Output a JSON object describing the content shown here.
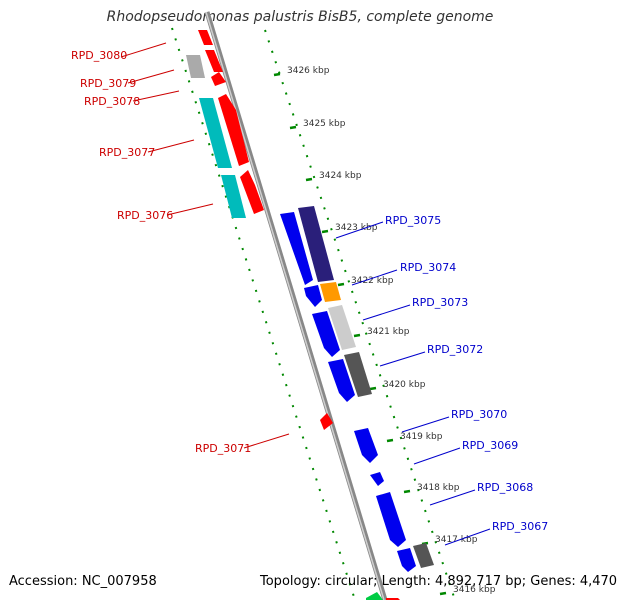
{
  "header": {
    "title": "Rhodopseudomonas palustris BisB5, complete genome"
  },
  "footer": {
    "accession": "Accession: NC_007958",
    "summary": "Topology: circular; Length: 4,892,717 bp; Genes: 4,470"
  },
  "colors": {
    "forward_label": "#cc0000",
    "reverse_label": "#0000cc",
    "backbone": "#999999",
    "ticks": "#008800"
  },
  "kbp_labels": [
    "3426 kbp",
    "3425 kbp",
    "3424 kbp",
    "3423 kbp",
    "3422 kbp",
    "3421 kbp",
    "3420 kbp",
    "3419 kbp",
    "3418 kbp",
    "3417 kbp",
    "3416 kbp"
  ],
  "genes_left": [
    {
      "label": "RPD_3080"
    },
    {
      "label": "RPD_3079"
    },
    {
      "label": "RPD_3078"
    },
    {
      "label": "RPD_3077"
    },
    {
      "label": "RPD_3076"
    },
    {
      "label": "RPD_3071"
    }
  ],
  "genes_right": [
    {
      "label": "RPD_3075"
    },
    {
      "label": "RPD_3074"
    },
    {
      "label": "RPD_3073"
    },
    {
      "label": "RPD_3072"
    },
    {
      "label": "RPD_3070"
    },
    {
      "label": "RPD_3069"
    },
    {
      "label": "RPD_3068"
    },
    {
      "label": "RPD_3067"
    }
  ]
}
